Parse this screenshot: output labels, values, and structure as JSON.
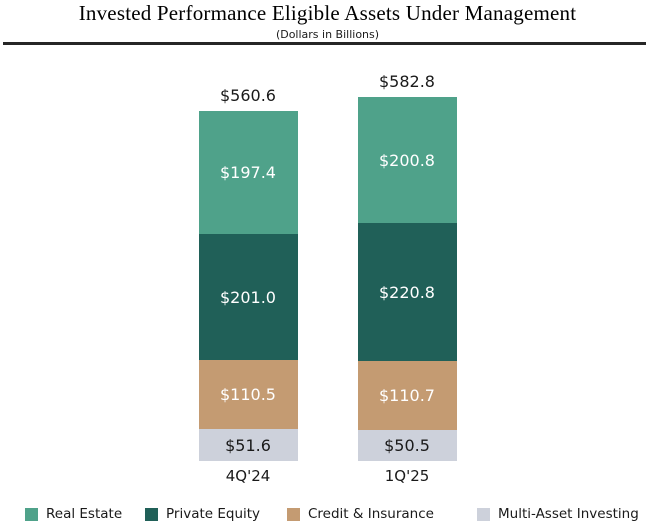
{
  "header": {
    "title": "Invested Performance Eligible Assets Under Management",
    "subtitle": "(Dollars in Billions)"
  },
  "chart_data": {
    "type": "bar",
    "stacked": true,
    "title": "Invested Performance Eligible Assets Under Management",
    "subtitle": "(Dollars in Billions)",
    "unit": "Dollars in Billions",
    "value_prefix": "$",
    "categories": [
      "4Q'24",
      "1Q'25"
    ],
    "totals": [
      560.6,
      582.8
    ],
    "total_labels": [
      "$560.6",
      "$582.8"
    ],
    "series": [
      {
        "name": "Real Estate",
        "values": [
          197.4,
          200.8
        ],
        "labels": [
          "$197.4",
          "$200.8"
        ],
        "color": "#4FA28A",
        "label_color": "#FFFFFF"
      },
      {
        "name": "Private Equity",
        "values": [
          201.0,
          220.8
        ],
        "labels": [
          "$201.0",
          "$220.8"
        ],
        "color": "#206058",
        "label_color": "#FFFFFF"
      },
      {
        "name": "Credit & Insurance",
        "values": [
          110.5,
          110.7
        ],
        "labels": [
          "$110.5",
          "$110.7"
        ],
        "color": "#C49B72",
        "label_color": "#FFFFFF"
      },
      {
        "name": "Multi-Asset Investing",
        "values": [
          51.6,
          50.5
        ],
        "labels": [
          "$51.6",
          "$50.5"
        ],
        "color": "#CDD1DB",
        "label_color": "#1A1A1A"
      }
    ],
    "legend_position": "bottom",
    "grid": false,
    "colors": {
      "title_text": "#000000",
      "divider": "#262626",
      "background": "#FFFFFF",
      "axis_text": "#1A1A1A"
    }
  }
}
